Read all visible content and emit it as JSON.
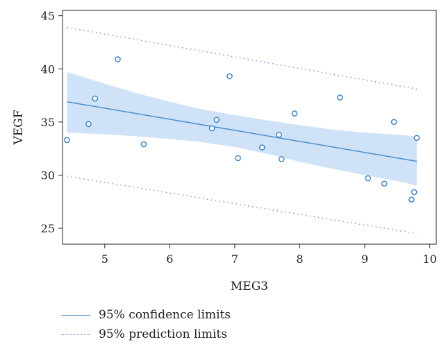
{
  "chart_data": {
    "type": "scatter",
    "title": "",
    "xlabel": "MEG3",
    "ylabel": "VEGF",
    "xlim": [
      4.35,
      10.1
    ],
    "ylim": [
      23.5,
      45.5
    ],
    "xticks": [
      5,
      6,
      7,
      8,
      9,
      10
    ],
    "yticks": [
      25,
      30,
      35,
      40,
      45
    ],
    "points": [
      {
        "x": 4.42,
        "y": 33.3
      },
      {
        "x": 4.75,
        "y": 34.8
      },
      {
        "x": 4.85,
        "y": 37.2
      },
      {
        "x": 5.2,
        "y": 40.9
      },
      {
        "x": 5.6,
        "y": 32.9
      },
      {
        "x": 6.65,
        "y": 34.4
      },
      {
        "x": 6.72,
        "y": 35.2
      },
      {
        "x": 6.92,
        "y": 39.3
      },
      {
        "x": 7.05,
        "y": 31.6
      },
      {
        "x": 7.42,
        "y": 32.6
      },
      {
        "x": 7.68,
        "y": 33.8
      },
      {
        "x": 7.72,
        "y": 31.5
      },
      {
        "x": 7.92,
        "y": 35.8
      },
      {
        "x": 8.62,
        "y": 37.3
      },
      {
        "x": 9.05,
        "y": 29.7
      },
      {
        "x": 9.3,
        "y": 29.2
      },
      {
        "x": 9.45,
        "y": 35.0
      },
      {
        "x": 9.72,
        "y": 27.7
      },
      {
        "x": 9.76,
        "y": 28.4
      },
      {
        "x": 9.8,
        "y": 33.5
      }
    ],
    "fit_line": {
      "x": [
        4.42,
        9.8
      ],
      "y": [
        36.9,
        31.3
      ]
    },
    "confidence_band": {
      "x": [
        4.42,
        5.0,
        5.5,
        6.0,
        6.5,
        7.0,
        7.5,
        8.0,
        8.5,
        9.0,
        9.5,
        9.8
      ],
      "lower": [
        34.0,
        33.85,
        33.65,
        33.4,
        33.1,
        32.65,
        32.0,
        31.25,
        30.6,
        30.0,
        29.45,
        29.0
      ],
      "upper": [
        39.7,
        38.6,
        37.7,
        36.9,
        36.2,
        35.65,
        35.15,
        34.7,
        34.3,
        34.0,
        33.8,
        33.65
      ]
    },
    "prediction_band": {
      "x": [
        4.42,
        9.8
      ],
      "lower": [
        29.9,
        24.5
      ],
      "upper": [
        43.9,
        38.1
      ]
    },
    "legend": [
      {
        "label": "95% confidence limits",
        "style": "solid"
      },
      {
        "label": "95% prediction limits",
        "style": "dotted"
      }
    ],
    "legend_position": "bottom-left",
    "grid": false,
    "colors": {
      "line": "#4a8fd0",
      "band_fill": "#cfe2f7",
      "marker": "#3f86c6",
      "prediction": "#7f86d6",
      "axis": "#222222"
    }
  }
}
